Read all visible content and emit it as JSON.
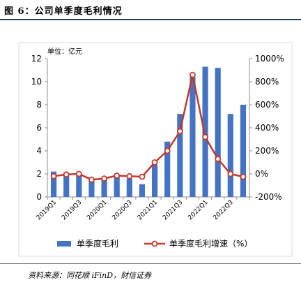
{
  "figure": {
    "title": "图 6：公司单季度毛利情况",
    "source": "资料来源：同花顺 iFinD，财信证券"
  },
  "chart_data": {
    "type": "bar+line",
    "unit_label": "单位：亿元",
    "categories": [
      "2019Q1",
      "2019Q2",
      "2019Q3",
      "2019Q4",
      "2020Q1",
      "2020Q2",
      "2020Q3",
      "2020Q4",
      "2021Q1",
      "2021Q2",
      "2021Q3",
      "2021Q4",
      "2022Q1",
      "2022Q2",
      "2022Q3",
      "2022Q4"
    ],
    "x_tick_labels": [
      "2019Q1",
      "",
      "2019Q3",
      "",
      "2020Q1",
      "",
      "2020Q3",
      "",
      "2021Q1",
      "",
      "2021Q3",
      "",
      "2022Q1",
      "",
      "2022Q3",
      ""
    ],
    "series": [
      {
        "name": "单季度毛利",
        "type": "bar",
        "axis": "left",
        "color": "#4472c4",
        "values": [
          2.2,
          2.1,
          2.1,
          1.4,
          1.5,
          1.8,
          1.6,
          1.1,
          2.8,
          4.8,
          7.2,
          10.4,
          11.3,
          11.2,
          7.2,
          8.0
        ]
      },
      {
        "name": "单季度毛利增速（%）",
        "type": "line",
        "axis": "right",
        "color": "#c0392b",
        "values": [
          -20,
          -5,
          0,
          -50,
          -40,
          -15,
          -20,
          -25,
          100,
          200,
          370,
          860,
          320,
          130,
          0,
          -25
        ]
      }
    ],
    "y_left": {
      "min": 0,
      "max": 12,
      "ticks": [
        "0",
        "2",
        "4",
        "6",
        "8",
        "10",
        "12"
      ]
    },
    "y_right": {
      "min": -200,
      "max": 1000,
      "ticks": [
        "-200%",
        "0%",
        "200%",
        "400%",
        "600%",
        "800%",
        "1000%"
      ]
    },
    "legend_position": "bottom"
  }
}
